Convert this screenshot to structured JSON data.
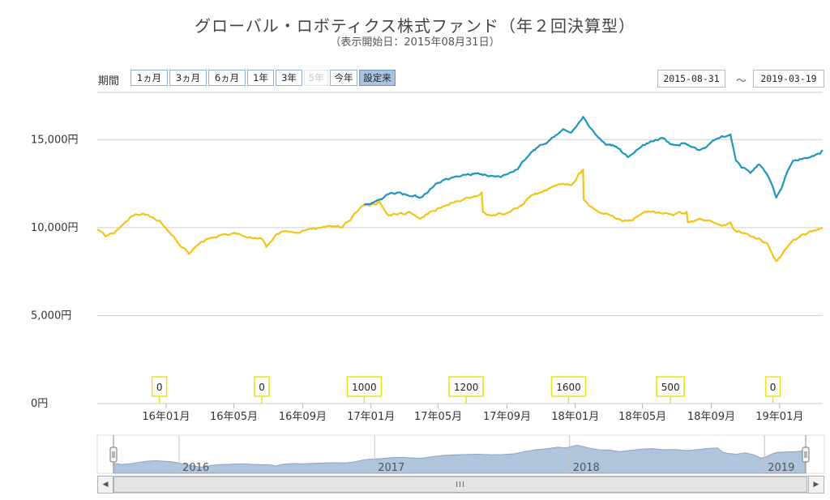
{
  "title": "グローバル・ロボティクス株式ファンド（年２回決算型）",
  "subtitle": "（表示開始日：2015年08月31日）",
  "controls": {
    "range_label": "期間",
    "range_buttons": [
      {
        "label": "1ヵ月",
        "state": "normal"
      },
      {
        "label": "3ヵ月",
        "state": "normal"
      },
      {
        "label": "6ヵ月",
        "state": "normal"
      },
      {
        "label": "1年",
        "state": "normal"
      },
      {
        "label": "3年",
        "state": "normal"
      },
      {
        "label": "5年",
        "state": "disabled"
      },
      {
        "label": "今年",
        "state": "normal"
      },
      {
        "label": "設定来",
        "state": "selected"
      }
    ],
    "date_from": "2015-08-31",
    "date_separator": "～",
    "date_to": "2019-03-19"
  },
  "colors": {
    "nav_line": "#f2c318",
    "adjusted_line": "#1d96bf",
    "navigator_fill": "#b0c4dc",
    "navigator_line": "#8aa4c6",
    "dividend_box_border": "#e9e21f",
    "grid": "#cfcfcf"
  },
  "chart_data": {
    "type": "line",
    "ylim": [
      0,
      17500
    ],
    "y_ticks": [
      {
        "value": 15000,
        "label": "15,000円"
      },
      {
        "value": 10000,
        "label": "10,000円"
      },
      {
        "value": 5000,
        "label": "5,000円"
      },
      {
        "value": 0,
        "label": "0円"
      }
    ],
    "x_range": [
      "2015-08-31",
      "2019-03-19"
    ],
    "x_ticks": [
      {
        "date": "2016-01-01",
        "label": "16年01月"
      },
      {
        "date": "2016-05-01",
        "label": "16年05月"
      },
      {
        "date": "2016-09-01",
        "label": "16年09月"
      },
      {
        "date": "2017-01-01",
        "label": "17年01月"
      },
      {
        "date": "2017-05-01",
        "label": "17年05月"
      },
      {
        "date": "2017-09-01",
        "label": "17年09月"
      },
      {
        "date": "2018-01-01",
        "label": "18年01月"
      },
      {
        "date": "2018-05-01",
        "label": "18年05月"
      },
      {
        "date": "2018-09-01",
        "label": "18年09月"
      },
      {
        "date": "2019-01-01",
        "label": "19年01月"
      }
    ],
    "series": [
      {
        "key": "nav",
        "x": [
          "2015-08-31",
          "2015-09-15",
          "2015-10-01",
          "2015-10-20",
          "2015-11-05",
          "2015-11-20",
          "2015-12-05",
          "2015-12-20",
          "2016-01-10",
          "2016-01-25",
          "2016-02-11",
          "2016-03-01",
          "2016-03-20",
          "2016-04-10",
          "2016-05-01",
          "2016-05-20",
          "2016-06-10",
          "2016-06-24",
          "2016-06-28",
          "2016-07-15",
          "2016-08-01",
          "2016-08-20",
          "2016-09-10",
          "2016-09-30",
          "2016-10-20",
          "2016-11-10",
          "2016-11-25",
          "2016-12-10",
          "2016-12-20",
          "2017-01-10",
          "2017-01-16",
          "2017-02-01",
          "2017-02-20",
          "2017-03-10",
          "2017-03-30",
          "2017-04-17",
          "2017-05-10",
          "2017-06-01",
          "2017-06-20",
          "2017-07-10",
          "2017-07-18",
          "2017-07-20",
          "2017-08-10",
          "2017-08-30",
          "2017-09-20",
          "2017-10-10",
          "2017-10-30",
          "2017-11-20",
          "2017-12-10",
          "2017-12-25",
          "2018-01-08",
          "2018-01-15",
          "2018-01-16",
          "2018-02-06",
          "2018-02-25",
          "2018-03-15",
          "2018-04-05",
          "2018-04-25",
          "2018-05-15",
          "2018-06-05",
          "2018-06-25",
          "2018-07-15",
          "2018-07-19",
          "2018-07-21",
          "2018-08-10",
          "2018-08-30",
          "2018-09-20",
          "2018-10-05",
          "2018-10-15",
          "2018-10-25",
          "2018-11-10",
          "2018-11-25",
          "2018-12-10",
          "2018-12-26",
          "2019-01-04",
          "2019-01-15",
          "2019-01-25",
          "2019-02-10",
          "2019-02-25",
          "2019-03-10",
          "2019-03-19"
        ],
        "values": [
          9900,
          9500,
          9700,
          10300,
          10700,
          10800,
          10600,
          10400,
          9600,
          9000,
          8500,
          9100,
          9400,
          9600,
          9700,
          9500,
          9400,
          9200,
          8900,
          9600,
          9800,
          9700,
          9900,
          10000,
          10100,
          10000,
          10400,
          11000,
          11300,
          11300,
          11500,
          10700,
          10800,
          10900,
          10500,
          10900,
          11200,
          11500,
          11700,
          11800,
          12000,
          10900,
          10700,
          10800,
          11100,
          11700,
          12000,
          12300,
          12500,
          12400,
          13100,
          13300,
          11600,
          11000,
          10800,
          10500,
          10400,
          10700,
          10900,
          10800,
          10700,
          10800,
          10900,
          10300,
          10500,
          10400,
          10100,
          10300,
          9800,
          9700,
          9500,
          9400,
          9100,
          8100,
          8400,
          8900,
          9300,
          9600,
          9800,
          9900,
          9950
        ]
      },
      {
        "key": "adjusted",
        "x": [
          "2016-12-20",
          "2017-01-10",
          "2017-02-01",
          "2017-02-20",
          "2017-03-10",
          "2017-03-30",
          "2017-04-17",
          "2017-05-10",
          "2017-06-01",
          "2017-06-20",
          "2017-07-10",
          "2017-08-10",
          "2017-08-30",
          "2017-09-20",
          "2017-10-10",
          "2017-10-30",
          "2017-11-20",
          "2017-12-10",
          "2017-12-25",
          "2018-01-08",
          "2018-01-15",
          "2018-02-06",
          "2018-02-25",
          "2018-03-15",
          "2018-04-05",
          "2018-04-25",
          "2018-05-15",
          "2018-06-05",
          "2018-06-25",
          "2018-07-15",
          "2018-08-10",
          "2018-08-30",
          "2018-09-20",
          "2018-10-05",
          "2018-10-15",
          "2018-10-25",
          "2018-11-10",
          "2018-11-25",
          "2018-12-10",
          "2018-12-26",
          "2019-01-04",
          "2019-01-15",
          "2019-01-25",
          "2019-02-10",
          "2019-02-25",
          "2019-03-10",
          "2019-03-19"
        ],
        "values": [
          11300,
          11500,
          11900,
          12000,
          11800,
          11700,
          12200,
          12700,
          12900,
          13000,
          13100,
          12900,
          13000,
          13300,
          14100,
          14700,
          15100,
          15600,
          15400,
          16000,
          16300,
          15300,
          14700,
          14600,
          14000,
          14500,
          14900,
          15100,
          14700,
          14800,
          14400,
          14800,
          15200,
          15300,
          13800,
          13400,
          13100,
          13600,
          13000,
          11700,
          12200,
          13200,
          13800,
          13900,
          14000,
          14200,
          14400
        ]
      }
    ],
    "dividends": [
      {
        "date": "2015-12-20",
        "label": "0"
      },
      {
        "date": "2016-06-20",
        "label": "0"
      },
      {
        "date": "2016-12-20",
        "label": "1000"
      },
      {
        "date": "2017-06-20",
        "label": "1200"
      },
      {
        "date": "2017-12-20",
        "label": "1600"
      },
      {
        "date": "2018-06-20",
        "label": "500"
      },
      {
        "date": "2018-12-20",
        "label": "0"
      }
    ],
    "navigator": {
      "year_labels": [
        {
          "date": "2016-01-01",
          "label": "2016"
        },
        {
          "date": "2017-01-01",
          "label": "2017"
        },
        {
          "date": "2018-01-01",
          "label": "2018"
        },
        {
          "date": "2019-01-01",
          "label": "2019"
        }
      ]
    }
  },
  "scrollbar": {
    "left_arrow": "◀",
    "right_arrow": "▶",
    "grip": "III"
  }
}
